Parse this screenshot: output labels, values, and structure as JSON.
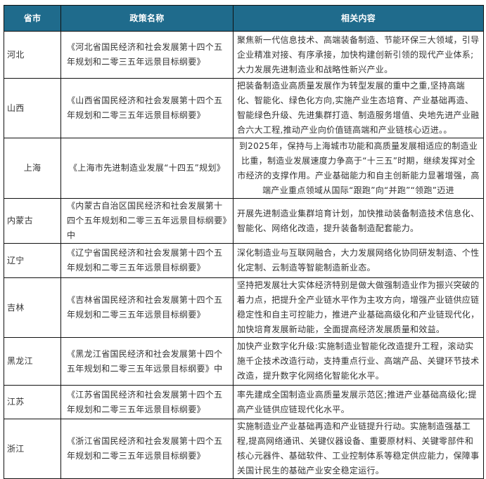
{
  "header": {
    "col_province": "省市",
    "col_policy": "政策名称",
    "col_content": "相关内容"
  },
  "header_color": "#1f6b8c",
  "rows": [
    {
      "province": "河北",
      "policy": "《河北省国民经济和社会发展第十四个五年规划和二零三五年远景目标纲要》",
      "content": "聚焦新一代信息技术、高端装备制造、节能环保三大领域，引导企业精准对接、有序承接，加快构建创新引领的现代产业体系;大力发展先进制造业和战略性新兴产业。"
    },
    {
      "province": "山西",
      "policy": "《山西省国民经济和社会发展第十四个五年规划和二零三五年远景目标纲要》",
      "content": "把装备制造业高质量发展作为转型发展的重中之重,坚持高端化、智能化、绿色化方向,实施产业生态培育、产业基础再造、智能绿色升级、先进集群打造、制造服务增值、央地先进产业融合六大工程,推动产业向价值链高端和产业链核心迈进。。"
    },
    {
      "province": "上海",
      "policy": "《上海市先进制造业发展“十四五”规划》",
      "content": "到2025年，保持与上海城市功能和高质量发展相适应的制造业比重，制造业发展速度力争高于“十三五”时期，继续发挥对全市经济的支撑作用。产业基础能力和自主创新能力显著增强，高端产业重点领域从国际“跟跑”向“并跑”“领跑”迈进"
    },
    {
      "province": "内蒙古",
      "policy": "《内蒙古自治区国民经济和社会发展第十四个五年规划和二零三五年远景目标纲要》中",
      "content": "开展先进制造业集群培育计划，加快推动装备制造技术信息化、智能化、网络化改造，提升装备制造配套能力。"
    },
    {
      "province": "辽宁",
      "policy": "《辽宁省国民经济和社会发展第十四个五年规划和二零三五年远景目标纲要》",
      "content": "深化制造业与互联网融合，大力发展网络化协同研发制造、个性化定制、云制造等智能制造新业态。"
    },
    {
      "province": "吉林",
      "policy": "《吉林省国民经济和社会发展第十四个五年规划和二零三五年远景目标纲要》",
      "content": "坚持把发展壮大实体经济特别是做大做强制造业作为振兴突破的着力点，把提升全产业链水平作为主攻方向，增强产业链供应链稳定性和自主可控能力，推进产业基础高级化和产业链现代化，加快培育发展新动能，全面提高经济发展质量和效益。"
    },
    {
      "province": "黑龙江",
      "policy": "《黑龙江省国民经济和社会发展第十四个五年规划和二零三五年远景目标纲要》中",
      "content": "加快产业数字化升级:实施制造业智能化改造提升工程，滚动实施千企技术改造行动，支持重点行业、高端产品、关键环节技术改造，提升数字化网络化智能化水平。"
    },
    {
      "province": "江苏",
      "policy": "《江苏省国民经济和社会发展第十四个五年规划和二零三五年远景目标纲要》",
      "content": "率先建成全国制造业高质量发展示范区;推进产业基础高级化;提高产业链供应链现代化水平。"
    },
    {
      "province": "浙江",
      "policy": "《浙江省国民经济和社会发展第十四个五年规划和二零三五年远景目标纲要》",
      "content": "实施制造业产业基础再造和产业链提升行动。实施制造强基工程,提高网络通讯、关键仪器设备、重要原材料、关键零部件和核心元器件、基础软件、工业控制体系等稳定供应能力，保障事关国计民生的基础产业安全稳定运行。"
    }
  ]
}
